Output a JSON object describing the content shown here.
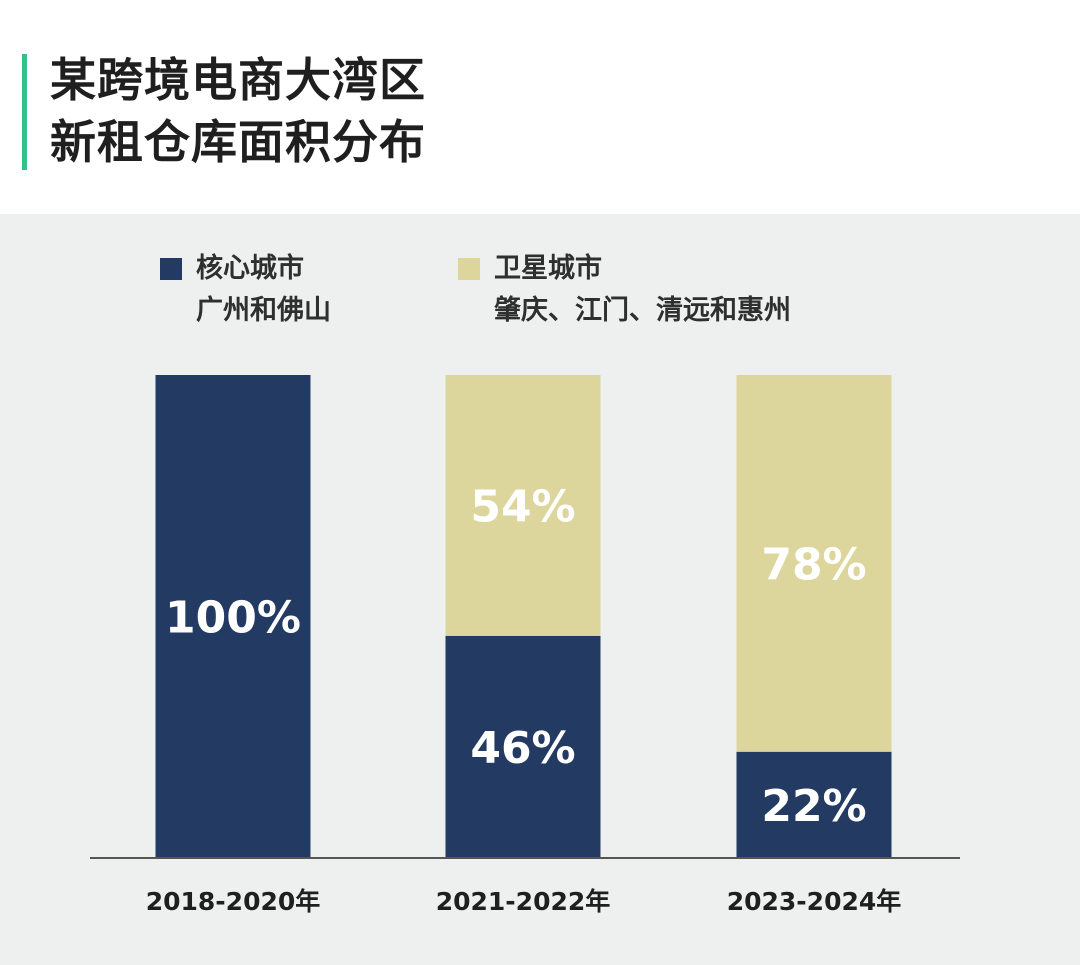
{
  "title": {
    "line1": "某跨境电商大湾区",
    "line2": "新租仓库面积分布"
  },
  "colors": {
    "accent": "#2fc58a",
    "core": "#233a63",
    "satellite": "#dcd69c",
    "panel": "#eef0f0",
    "axis": "#555555"
  },
  "legend": [
    {
      "name": "核心城市",
      "detail": "广州和佛山",
      "color": "#233a63"
    },
    {
      "name": "卫星城市",
      "detail": "肇庆、江门、清远和惠州",
      "color": "#dcd69c"
    }
  ],
  "chart_data": {
    "type": "bar",
    "stacked": true,
    "categories": [
      "2018-2020年",
      "2021-2022年",
      "2023-2024年"
    ],
    "series": [
      {
        "name": "核心城市",
        "values": [
          100,
          46,
          22
        ],
        "labels": [
          "100%",
          "46%",
          "22%"
        ],
        "color": "#233a63"
      },
      {
        "name": "卫星城市",
        "values": [
          0,
          54,
          78
        ],
        "labels": [
          "",
          "54%",
          "78%"
        ],
        "color": "#dcd69c"
      }
    ],
    "ylim": [
      0,
      100
    ],
    "grid": false,
    "legend_position": "top-left"
  }
}
